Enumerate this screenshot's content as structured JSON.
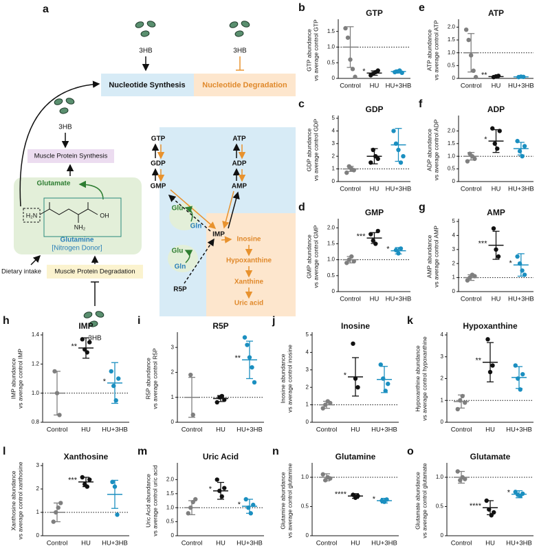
{
  "diagram": {
    "panel": "a",
    "hb": [
      "3HB",
      "3HB",
      "3HB",
      "3HB"
    ],
    "synthesis": "Nucleotide Synthesis",
    "degradation": "Nucleotide Degradation",
    "protein_synthesis": "Muscle Protein Synthesis",
    "glutamate": "Glutamate",
    "glutamine": "Glutamine",
    "donor": "[Nitrogen Donor]",
    "dietary": "Dietary intake",
    "protein_degradation": "Muscle Protein Degradation",
    "structure": [
      "H₂N",
      "NH₂",
      "OH"
    ],
    "pathway": [
      "GTP",
      "GDP",
      "GMP",
      "ATP",
      "ADP",
      "AMP",
      "Glu",
      "Gln",
      "IMP",
      "Glu",
      "Gln",
      "R5P",
      "Inosine",
      "Hypoxanthine",
      "Xanthine",
      "Uric acid"
    ]
  },
  "chart_data": [
    {
      "type": "strip",
      "panel": "b",
      "title": "GTP",
      "ylabel": [
        "GTP abundance",
        "vs average control GTP"
      ],
      "categories": [
        "Control",
        "HU",
        "HU+3HB"
      ],
      "ylim": [
        0,
        1.8
      ],
      "yticks": [
        0,
        0.5,
        {
          "value": 1,
          "label": "1.0"
        },
        1.5
      ],
      "reference_line": 1,
      "groups": [
        {
          "color": "#7f7f7f",
          "points": [
            1.6,
            1.3,
            0.6,
            0.3,
            0.05
          ],
          "mean": 1,
          "sd": 0.65
        },
        {
          "color": "#111111",
          "points": [
            0.1,
            0.15,
            0.2,
            0.25
          ],
          "mean": 0.17,
          "sd": 0.07,
          "annotation": "*"
        },
        {
          "color": "#1b8fc0",
          "points": [
            0.2,
            0.22,
            0.25,
            0.18
          ],
          "mean": 0.22,
          "sd": 0.05
        }
      ]
    },
    {
      "type": "strip",
      "panel": "c",
      "title": "GDP",
      "ylabel": [
        "GDP abundance",
        "vs average control GDP"
      ],
      "categories": [
        "Control",
        "HU",
        "HU+3HB"
      ],
      "ylim": [
        0,
        5
      ],
      "yticks": [
        0,
        1,
        2,
        3,
        4,
        5
      ],
      "reference_line": 1,
      "groups": [
        {
          "color": "#7f7f7f",
          "points": [
            0.7,
            1.2,
            1.0,
            0.9
          ],
          "mean": 1,
          "sd": 0.2
        },
        {
          "color": "#111111",
          "points": [
            1.5,
            2.5,
            2,
            1.8
          ],
          "mean": 2,
          "sd": 0.6
        },
        {
          "color": "#1b8fc0",
          "points": [
            4,
            3,
            2.5,
            1.5,
            2
          ],
          "mean": 2.9,
          "sd": 1.3
        }
      ]
    },
    {
      "type": "strip",
      "panel": "d",
      "title": "GMP",
      "ylabel": [
        "GMP abundance",
        "vs average control GMP"
      ],
      "categories": [
        "Control",
        "HU",
        "HU+3HB"
      ],
      "ylim": [
        0,
        2.2
      ],
      "yticks": [
        0,
        0.5,
        {
          "value": 1,
          "label": "1.0"
        },
        1.5,
        {
          "value": 2,
          "label": "2.0"
        }
      ],
      "reference_line": 1,
      "groups": [
        {
          "color": "#7f7f7f",
          "points": [
            0.9,
            1.0,
            1.1,
            0.95
          ],
          "mean": 1,
          "sd": 0.1
        },
        {
          "color": "#111111",
          "points": [
            1.8,
            1.6,
            1.5,
            1.9
          ],
          "mean": 1.68,
          "sd": 0.17,
          "annotation": "***"
        },
        {
          "color": "#1b8fc0",
          "points": [
            1.3,
            1.2,
            1.35
          ],
          "mean": 1.28,
          "sd": 0.1,
          "annotation": "*"
        }
      ]
    },
    {
      "type": "strip",
      "panel": "e",
      "title": "ATP",
      "ylabel": [
        "ATP abundance",
        "vs average control ATP"
      ],
      "categories": [
        "Control",
        "HU",
        "HU+3HB"
      ],
      "ylim": [
        0,
        2.2
      ],
      "yticks": [
        0,
        0.5,
        {
          "value": 1,
          "label": "1.0"
        },
        1.5,
        {
          "value": 2,
          "label": "2.0"
        }
      ],
      "reference_line": 1,
      "groups": [
        {
          "color": "#7f7f7f",
          "points": [
            1.9,
            1.5,
            0.9,
            0.3,
            0.05
          ],
          "mean": 1,
          "sd": 0.75
        },
        {
          "color": "#111111",
          "points": [
            0.05,
            0.08,
            0.1
          ],
          "mean": 0.07,
          "sd": 0.02,
          "annotation": "**"
        },
        {
          "color": "#1b8fc0",
          "points": [
            0.05,
            0.07,
            0.06
          ],
          "mean": 0.06,
          "sd": 0.01
        }
      ]
    },
    {
      "type": "strip",
      "panel": "f",
      "title": "ADP",
      "ylabel": [
        "ADP abundance",
        "vs average control ADP"
      ],
      "categories": [
        "Control",
        "HU",
        "HU+3HB"
      ],
      "ylim": [
        0,
        2.5
      ],
      "yticks": [
        0,
        0.5,
        {
          "value": 1,
          "label": "1.0"
        },
        1.5,
        {
          "value": 2,
          "label": "2.0"
        }
      ],
      "reference_line": 1,
      "groups": [
        {
          "color": "#7f7f7f",
          "points": [
            0.8,
            1.1,
            1.0,
            0.9
          ],
          "mean": 1,
          "sd": 0.15
        },
        {
          "color": "#111111",
          "points": [
            2.1,
            1.5,
            1.3,
            2.0
          ],
          "mean": 1.6,
          "sd": 0.45,
          "annotation": "*"
        },
        {
          "color": "#1b8fc0",
          "points": [
            1.6,
            1.2,
            1.0,
            1.4
          ],
          "mean": 1.3,
          "sd": 0.25
        }
      ]
    },
    {
      "type": "strip",
      "panel": "g",
      "title": "AMP",
      "ylabel": [
        "AMP abundance",
        "vs average control AMP"
      ],
      "categories": [
        "Control",
        "HU",
        "HU+3HB"
      ],
      "ylim": [
        0,
        5
      ],
      "yticks": [
        0,
        1,
        2,
        3,
        4,
        5
      ],
      "reference_line": 1,
      "groups": [
        {
          "color": "#7f7f7f",
          "points": [
            0.8,
            1.0,
            1.2,
            1.1
          ],
          "mean": 1,
          "sd": 0.2
        },
        {
          "color": "#111111",
          "points": [
            4.5,
            3,
            2.5
          ],
          "mean": 3.3,
          "sd": 1,
          "annotation": "***"
        },
        {
          "color": "#1b8fc0",
          "points": [
            2.5,
            2,
            1.5,
            1.2
          ],
          "mean": 1.9,
          "sd": 0.8,
          "annotation": "*"
        }
      ]
    },
    {
      "type": "strip",
      "panel": "h",
      "title": "IMP",
      "ylabel": [
        "IMP abundance",
        "vs average control IMP"
      ],
      "categories": [
        "Control",
        "HU",
        "HU+3HB"
      ],
      "ylim": [
        0.8,
        1.4
      ],
      "yticks": [
        0.8,
        {
          "value": 1,
          "label": "1.0"
        },
        1.2,
        1.4
      ],
      "reference_line": 1,
      "groups": [
        {
          "color": "#7f7f7f",
          "points": [
            1.15,
            1.0,
            0.85
          ],
          "mean": 1,
          "sd": 0.15
        },
        {
          "color": "#111111",
          "points": [
            1.37,
            1.3,
            1.28,
            1.35
          ],
          "mean": 1.31,
          "sd": 0.07,
          "annotation": "**"
        },
        {
          "color": "#1b8fc0",
          "points": [
            1.15,
            1.05,
            0.95,
            1.1
          ],
          "mean": 1.07,
          "sd": 0.14,
          "annotation": "*"
        }
      ]
    },
    {
      "type": "strip",
      "panel": "i",
      "title": "R5P",
      "ylabel": [
        "R5P abundance",
        "vs average control R5P"
      ],
      "categories": [
        "Control",
        "HU",
        "HU+3HB"
      ],
      "ylim": [
        0,
        3.5
      ],
      "yticks": [
        0,
        1,
        2,
        3
      ],
      "reference_line": 1,
      "groups": [
        {
          "color": "#7f7f7f",
          "points": [
            1.9,
            0.3
          ],
          "mean": 1,
          "sd": 0.8
        },
        {
          "color": "#111111",
          "points": [
            0.8,
            1,
            1.05,
            0.9
          ],
          "mean": 0.95,
          "sd": 0.12
        },
        {
          "color": "#1b8fc0",
          "points": [
            3.4,
            3.1,
            2.6,
            2.2,
            1.6
          ],
          "mean": 2.5,
          "sd": 0.75,
          "annotation": "**"
        }
      ]
    },
    {
      "type": "strip",
      "panel": "j",
      "title": "Inosine",
      "ylabel": [
        "Inosine abundance",
        "vs average control inosine"
      ],
      "categories": [
        "Control",
        "HU",
        "HU+3HB"
      ],
      "ylim": [
        0,
        5
      ],
      "yticks": [
        0,
        1,
        2,
        3,
        4,
        5
      ],
      "reference_line": 1,
      "groups": [
        {
          "color": "#7f7f7f",
          "points": [
            0.8,
            1,
            1.2,
            1.1
          ],
          "mean": 1,
          "sd": 0.2
        },
        {
          "color": "#111111",
          "points": [
            4.5,
            2.5,
            2
          ],
          "mean": 2.6,
          "sd": 1.1,
          "annotation": "*"
        },
        {
          "color": "#1b8fc0",
          "points": [
            3.3,
            2.5,
            1.8,
            2.2
          ],
          "mean": 2.45,
          "sd": 0.75
        }
      ]
    },
    {
      "type": "strip",
      "panel": "k",
      "title": "Hypoxanthine",
      "ylabel": [
        "Hypoxanthine abundance",
        "vs average control hypoxanthine"
      ],
      "categories": [
        "Control",
        "HU",
        "HU+3HB"
      ],
      "ylim": [
        0,
        4
      ],
      "yticks": [
        0,
        1,
        2,
        3,
        4
      ],
      "reference_line": 1,
      "groups": [
        {
          "color": "#7f7f7f",
          "points": [
            0.6,
            1.0,
            1.2,
            0.9
          ],
          "mean": 0.95,
          "sd": 0.3
        },
        {
          "color": "#111111",
          "points": [
            3.8,
            2.3,
            2.6
          ],
          "mean": 2.75,
          "sd": 0.9,
          "annotation": "**"
        },
        {
          "color": "#1b8fc0",
          "points": [
            2.6,
            2,
            1.5,
            2.2
          ],
          "mean": 2.05,
          "sd": 0.5
        }
      ]
    },
    {
      "type": "strip",
      "panel": "l",
      "title": "Xanthosine",
      "ylabel": [
        "Xanthosine abundance",
        "vs average control xanthosine"
      ],
      "categories": [
        "Control",
        "HU",
        "HU+3HB"
      ],
      "ylim": [
        0,
        3
      ],
      "yticks": [
        0,
        1,
        2,
        3
      ],
      "reference_line": 1,
      "groups": [
        {
          "color": "#7f7f7f",
          "points": [
            0.6,
            1,
            1.2,
            1.4
          ],
          "mean": 1,
          "sd": 0.4
        },
        {
          "color": "#111111",
          "points": [
            2.5,
            2.2,
            2.1,
            2.4
          ],
          "mean": 2.3,
          "sd": 0.2,
          "annotation": "***"
        },
        {
          "color": "#1b8fc0",
          "points": [
            2.3,
            2.1,
            0.9
          ],
          "mean": 1.77,
          "sd": 0.6
        }
      ]
    },
    {
      "type": "strip",
      "panel": "m",
      "title": "Uric Acid",
      "ylabel": [
        "Uric Acid abundance",
        "vs average control uric acid"
      ],
      "categories": [
        "Control",
        "HU",
        "HU+3HB"
      ],
      "ylim": [
        0,
        2.5
      ],
      "yticks": [
        0,
        0.5,
        {
          "value": 1,
          "label": "1.0"
        },
        1.5,
        {
          "value": 2,
          "label": "2.0"
        }
      ],
      "reference_line": 1,
      "groups": [
        {
          "color": "#7f7f7f",
          "points": [
            0.8,
            1.0,
            1.2,
            1.3
          ],
          "mean": 1,
          "sd": 0.25
        },
        {
          "color": "#111111",
          "points": [
            2.0,
            1.6,
            1.4,
            1.7
          ],
          "mean": 1.6,
          "sd": 0.3,
          "annotation": "*"
        },
        {
          "color": "#1b8fc0",
          "points": [
            1.3,
            1.0,
            0.8,
            1.1
          ],
          "mean": 1.05,
          "sd": 0.25,
          "annotation": "*"
        }
      ]
    },
    {
      "type": "strip",
      "panel": "n",
      "title": "Glutamine",
      "ylabel": [
        "Glutamine abundance",
        "vs average control glutamine"
      ],
      "categories": [
        "Control",
        "HU",
        "HU+3HB"
      ],
      "ylim": [
        0,
        1.2
      ],
      "yticks": [
        0,
        0.5,
        {
          "value": 1,
          "label": "1.0"
        }
      ],
      "reference_line": 1,
      "groups": [
        {
          "color": "#7f7f7f",
          "points": [
            1.05,
            0.95,
            1.0,
            0.98
          ],
          "mean": 1,
          "sd": 0.06
        },
        {
          "color": "#111111",
          "points": [
            0.7,
            0.65,
            0.68
          ],
          "mean": 0.68,
          "sd": 0.04,
          "annotation": "****"
        },
        {
          "color": "#1b8fc0",
          "points": [
            0.6,
            0.58,
            0.62
          ],
          "mean": 0.6,
          "sd": 0.04,
          "annotation": "*"
        }
      ]
    },
    {
      "type": "strip",
      "panel": "o",
      "title": "Glutamate",
      "ylabel": [
        "Glutamate abundance",
        "vs average control glutamate"
      ],
      "categories": [
        "Control",
        "HU",
        "HU+3HB"
      ],
      "ylim": [
        0,
        1.2
      ],
      "yticks": [
        0,
        0.5,
        {
          "value": 1,
          "label": "1.0"
        }
      ],
      "reference_line": 1,
      "groups": [
        {
          "color": "#7f7f7f",
          "points": [
            1.1,
            0.95,
            1.0,
            0.97
          ],
          "mean": 1,
          "sd": 0.1
        },
        {
          "color": "#111111",
          "points": [
            0.6,
            0.45,
            0.35,
            0.4
          ],
          "mean": 0.48,
          "sd": 0.12,
          "annotation": "****"
        },
        {
          "color": "#1b8fc0",
          "points": [
            0.75,
            0.7,
            0.68,
            0.72
          ],
          "mean": 0.71,
          "sd": 0.06,
          "annotation": "*"
        }
      ]
    }
  ]
}
